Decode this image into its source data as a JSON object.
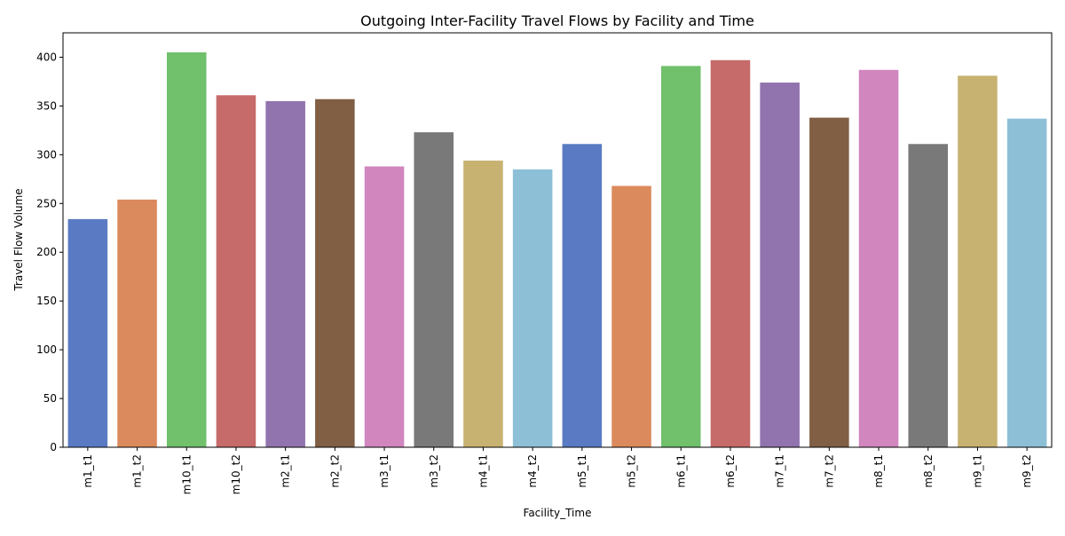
{
  "chart_data": {
    "type": "bar",
    "title": "Outgoing Inter-Facility Travel Flows by Facility and Time",
    "xlabel": "Facility_Time",
    "ylabel": "Travel Flow Volume",
    "ylim": [
      0,
      425
    ],
    "yticks": [
      0,
      50,
      100,
      150,
      200,
      250,
      300,
      350,
      400
    ],
    "grid": false,
    "categories": [
      "m1_t1",
      "m1_t2",
      "m10_t1",
      "m10_t2",
      "m2_t1",
      "m2_t2",
      "m3_t1",
      "m3_t2",
      "m4_t1",
      "m4_t2",
      "m5_t1",
      "m5_t2",
      "m6_t1",
      "m6_t2",
      "m7_t1",
      "m7_t2",
      "m8_t1",
      "m8_t2",
      "m9_t1",
      "m9_t2"
    ],
    "values": [
      234,
      254,
      405,
      361,
      355,
      357,
      288,
      323,
      294,
      285,
      311,
      268,
      391,
      397,
      374,
      338,
      387,
      311,
      381,
      337
    ],
    "colors": [
      "#5a7bc3",
      "#db8a5d",
      "#70c06c",
      "#c66b6a",
      "#9173ae",
      "#805f45",
      "#d186be",
      "#797979",
      "#c7b271",
      "#8dc0d7",
      "#5a7bc3",
      "#db8a5d",
      "#70c06c",
      "#c66b6a",
      "#9173ae",
      "#805f45",
      "#d186be",
      "#797979",
      "#c7b271",
      "#8dc0d7"
    ]
  }
}
